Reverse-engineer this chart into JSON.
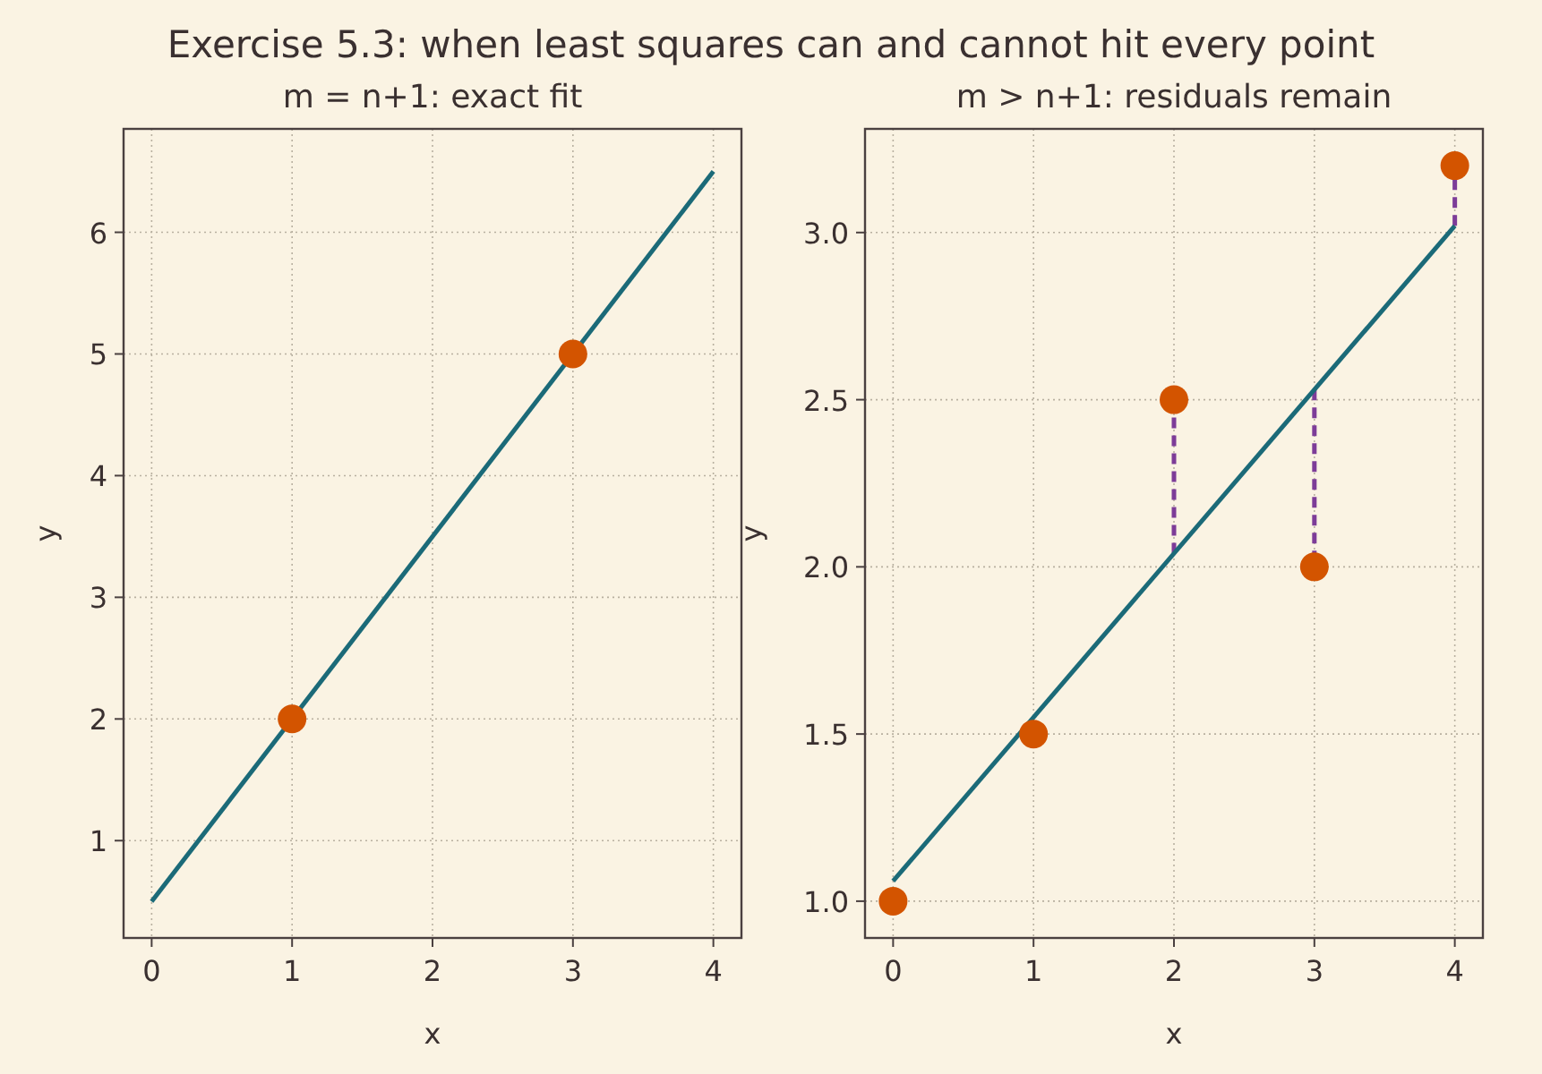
{
  "chart_data": [
    {
      "type": "line",
      "title": "Exercise 5.3: when least squares can and cannot hit every point",
      "subtitle": "m = n+1: exact fit",
      "xlabel": "x",
      "ylabel": "y",
      "xlim": [
        -0.2,
        4.2
      ],
      "ylim": [
        0.2,
        6.85
      ],
      "xticks": [
        0,
        1,
        2,
        3,
        4
      ],
      "yticks": [
        1,
        2,
        3,
        4,
        5,
        6
      ],
      "grid": true,
      "series": [
        {
          "color": "#1b6a78",
          "x": [
            0,
            4
          ],
          "values": [
            0.5,
            6.5
          ],
          "line_style": "solid"
        },
        {
          "type": "scatter",
          "color": "#d35400",
          "x": [
            1,
            3
          ],
          "values": [
            2,
            5
          ],
          "marker": "circle"
        }
      ]
    },
    {
      "type": "line",
      "subtitle": "m > n+1: residuals remain",
      "xlabel": "x",
      "ylabel": "y",
      "xlim": [
        -0.2,
        4.2
      ],
      "ylim": [
        0.89,
        3.31
      ],
      "xticks": [
        0,
        1,
        2,
        3,
        4
      ],
      "yticks": [
        {
          "value": 1,
          "label": "1.0"
        },
        1.5,
        {
          "value": 2,
          "label": "2.0"
        },
        2.5,
        {
          "value": 3,
          "label": "3.0"
        }
      ],
      "grid": true,
      "series": [
        {
          "color": "#7d3c98",
          "x": [
            2,
            2
          ],
          "values": [
            2.04,
            2.5
          ],
          "line_style": "dashed"
        },
        {
          "color": "#7d3c98",
          "x": [
            3,
            3
          ],
          "values": [
            2.53,
            2
          ],
          "line_style": "dashed"
        },
        {
          "color": "#7d3c98",
          "x": [
            4,
            4
          ],
          "values": [
            3.02,
            3.2
          ],
          "line_style": "dashed"
        },
        {
          "color": "#1b6a78",
          "x": [
            0,
            4
          ],
          "values": [
            1.06,
            3.02
          ],
          "line_style": "solid"
        },
        {
          "type": "scatter",
          "color": "#d35400",
          "x": [
            0,
            1,
            2,
            3,
            4
          ],
          "values": [
            1,
            1.5,
            2.5,
            2,
            3.2
          ],
          "marker": "circle"
        }
      ]
    }
  ]
}
